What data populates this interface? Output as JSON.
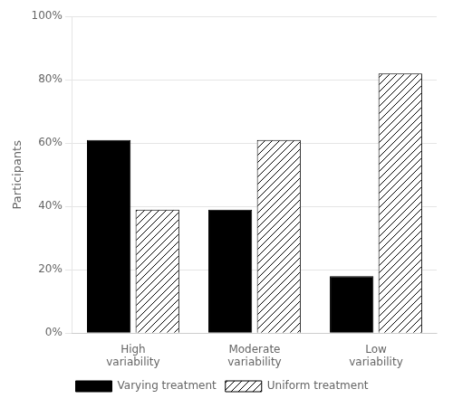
{
  "chart_data": {
    "type": "bar",
    "categories": [
      "High\nvariability",
      "Moderate\nvariability",
      "Low\nvariability"
    ],
    "series": [
      {
        "name": "Varying treatment",
        "color": "#000000",
        "values": [
          0.61,
          0.39,
          0.18
        ]
      },
      {
        "name": "Uniform treatment",
        "color": "#ffffff",
        "values": [
          0.39,
          0.61,
          0.82
        ]
      }
    ],
    "ylabel": "Participants",
    "ylim": [
      0,
      1.0
    ],
    "yticks": [
      {
        "value": 0.0,
        "label": "0%"
      },
      {
        "value": 0.2,
        "label": "20%"
      },
      {
        "value": 0.4,
        "label": "40%"
      },
      {
        "value": 0.6,
        "label": "60%"
      },
      {
        "value": 0.8,
        "label": "80%"
      },
      {
        "value": 1.0,
        "label": "100%"
      }
    ],
    "grid": true,
    "legend": "bottom"
  }
}
